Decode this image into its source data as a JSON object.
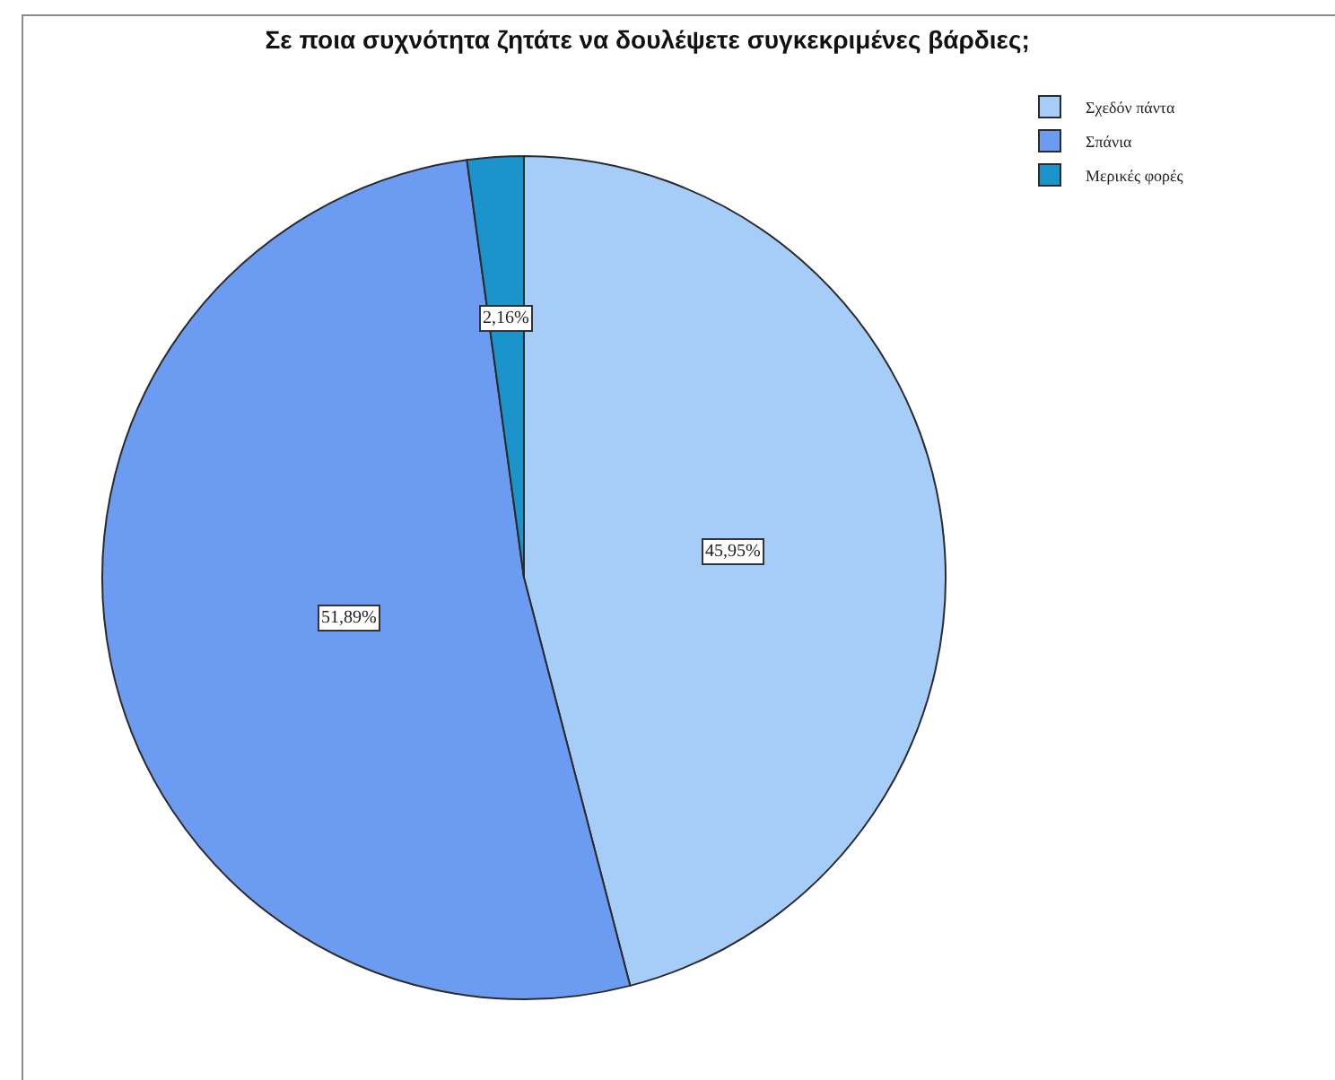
{
  "chart_data": {
    "type": "pie",
    "title": "Σε ποια συχνότητα ζητάτε να δουλέψετε συγκεκριμένες βάρδιες;",
    "categories": [
      "Σχεδόν πάντα",
      "Σπάνια",
      "Μερικές φορές"
    ],
    "values": [
      45.95,
      51.89,
      2.16
    ],
    "colors": [
      "#a6cdf7",
      "#6c9cf2",
      "#1b93cb"
    ],
    "value_labels": [
      "45,95%",
      "51,89%",
      "2,16%"
    ],
    "legend": "top right"
  }
}
